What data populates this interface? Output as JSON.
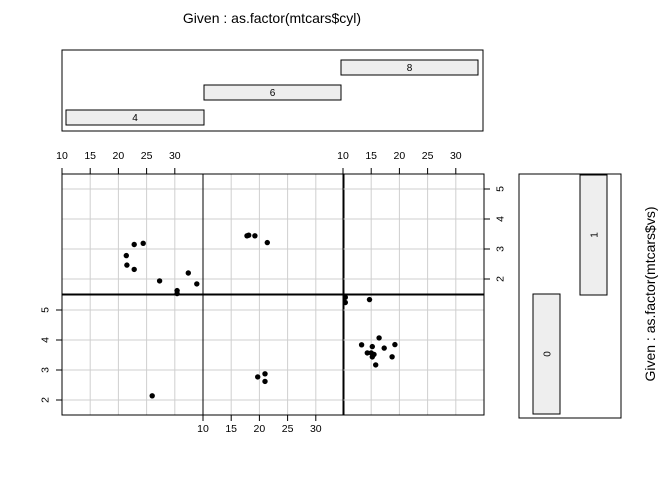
{
  "chart_data": {
    "type": "scatter",
    "title_top": "Given : as.factor(mtcars$cyl)",
    "title_right": "Given : as.factor(mtcars$vs)",
    "given_top": {
      "levels": [
        "4",
        "6",
        "8"
      ]
    },
    "given_right": {
      "levels": [
        "0",
        "1"
      ]
    },
    "xlim": [
      10,
      35
    ],
    "ylim": [
      1.5,
      5.5
    ],
    "x_ticks": [
      10,
      15,
      20,
      25,
      30
    ],
    "y_ticks": [
      2,
      3,
      4,
      5
    ],
    "grid": true,
    "panels": [
      {
        "cyl": "4",
        "vs": "1",
        "x": [
          22.8,
          24.4,
          22.8,
          32.4,
          30.4,
          33.9,
          21.5,
          27.3,
          30.4,
          21.4
        ],
        "y": [
          3.15,
          3.19,
          2.32,
          2.2,
          1.615,
          1.835,
          2.465,
          1.935,
          1.513,
          2.78
        ]
      },
      {
        "cyl": "6",
        "vs": "1",
        "x": [
          21.4,
          18.1,
          19.2,
          17.8
        ],
        "y": [
          3.215,
          3.46,
          3.44,
          3.44
        ]
      },
      {
        "cyl": "8",
        "vs": "1",
        "x": [],
        "y": []
      },
      {
        "cyl": "4",
        "vs": "0",
        "x": [
          26.0
        ],
        "y": [
          2.14
        ]
      },
      {
        "cyl": "6",
        "vs": "0",
        "x": [
          21.0,
          21.0,
          19.7
        ],
        "y": [
          2.62,
          2.875,
          2.77
        ]
      },
      {
        "cyl": "8",
        "vs": "0",
        "x": [
          18.7,
          14.3,
          16.4,
          17.3,
          15.2,
          10.4,
          10.4,
          14.7,
          15.5,
          15.2,
          13.3,
          19.2,
          15.8,
          15.0
        ],
        "y": [
          3.44,
          3.57,
          4.07,
          3.73,
          3.78,
          5.25,
          5.424,
          5.345,
          3.52,
          3.435,
          3.84,
          3.845,
          3.17,
          3.57
        ]
      }
    ]
  }
}
